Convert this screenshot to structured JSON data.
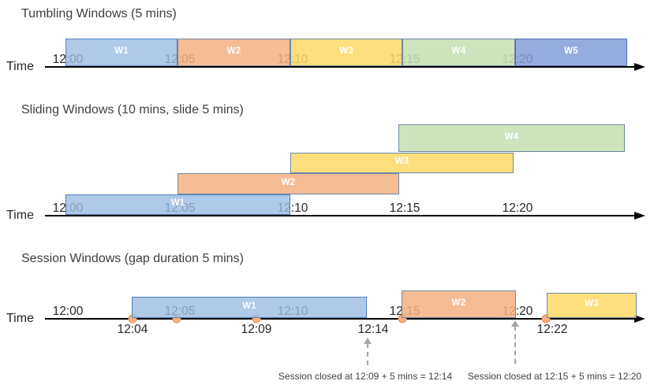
{
  "colors": {
    "blue_light": {
      "fill": "rgba(155,187,227,0.80)",
      "border": "#4f81bd"
    },
    "blue_medium": {
      "fill": "rgba(130,158,216,0.85)",
      "border": "#4a6fae"
    },
    "orange": {
      "fill": "rgba(244,177,131,0.85)",
      "border": "#6d87a8"
    },
    "yellow": {
      "fill": "rgba(255,217,102,0.85)",
      "border": "#6d87a8"
    },
    "green": {
      "fill": "rgba(197,224,180,0.87)",
      "border": "#6d87a8"
    },
    "event_dot": {
      "fill": "#f4b183",
      "border": "#e09159"
    },
    "axis": "#000000",
    "dashed_arrow": "#a6a6a6",
    "title_text": "#3f3f3f",
    "tick_text": "#262626",
    "window_label_text": "#ffffff"
  },
  "sections": [
    {
      "id": "tumbling",
      "title": "Tumbling Windows (5 mins)",
      "axis_label": "Time",
      "ticks": [
        "12:00",
        "12:05",
        "12:10",
        "12:15",
        "12:20"
      ],
      "windows": [
        {
          "label": "W1",
          "color": "blue_light",
          "start": "12:00",
          "end": "12:05"
        },
        {
          "label": "W2",
          "color": "orange",
          "start": "12:05",
          "end": "12:10"
        },
        {
          "label": "W3",
          "color": "yellow",
          "start": "12:10",
          "end": "12:15"
        },
        {
          "label": "W4",
          "color": "green",
          "start": "12:15",
          "end": "12:20"
        },
        {
          "label": "W5",
          "color": "blue_medium",
          "start": "12:20",
          "end": "12:25"
        }
      ]
    },
    {
      "id": "sliding",
      "title": "Sliding Windows (10 mins, slide 5 mins)",
      "axis_label": "Time",
      "ticks": [
        "12:00",
        "12:05",
        "12:10",
        "12:15",
        "12:20"
      ],
      "windows": [
        {
          "label": "W1",
          "color": "blue_light",
          "start": "12:00",
          "end": "12:10"
        },
        {
          "label": "W2",
          "color": "orange",
          "start": "12:05",
          "end": "12:15"
        },
        {
          "label": "W3",
          "color": "yellow",
          "start": "12:10",
          "end": "12:20"
        },
        {
          "label": "W4",
          "color": "green",
          "start": "12:15",
          "end": "12:25"
        }
      ]
    },
    {
      "id": "session",
      "title": "Session Windows (gap duration 5 mins)",
      "axis_label": "Time",
      "ticks": [
        "12:00",
        "12:05",
        "12:10",
        "12:15",
        "12:20"
      ],
      "windows": [
        {
          "label": "W1",
          "color": "blue_light",
          "start": "12:04",
          "end": "12:14"
        },
        {
          "label": "W2",
          "color": "orange",
          "start": "12:15",
          "end": "12:20"
        },
        {
          "label": "W3",
          "color": "yellow",
          "start": "12:22"
        }
      ],
      "event_labels": [
        "12:04",
        "12:09",
        "12:14",
        "12:22"
      ],
      "annotations": [
        "Session closed at 12:09 + 5 mins = 12:14",
        "Session closed at 12:15 + 5 mins = 12:20"
      ]
    }
  ]
}
